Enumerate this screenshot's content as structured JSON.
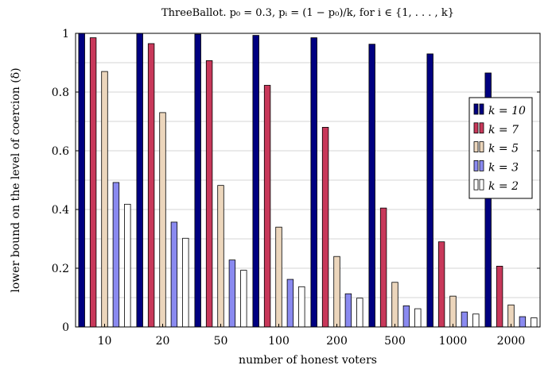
{
  "chart_data": {
    "type": "bar",
    "title": "ThreeBallot. p₀ = 0.3, pᵢ = (1 − p₀)/k, for i ∈ {1, . . . , k}",
    "xlabel": "number of honest voters",
    "ylabel": "lower bound on the level of coercion (δ)",
    "ylim": [
      0,
      1
    ],
    "yticks": [
      "0",
      "0.2",
      "0.4",
      "0.6",
      "0.8",
      "1"
    ],
    "categories": [
      "10",
      "20",
      "50",
      "100",
      "200",
      "500",
      "1000",
      "2000"
    ],
    "grid": true,
    "legend_position": "right",
    "series": [
      {
        "name": "k = 10",
        "color": "#000080",
        "values": [
          1.0,
          1.0,
          0.997,
          0.993,
          0.985,
          0.963,
          0.93,
          0.865
        ]
      },
      {
        "name": "k = 7",
        "color": "#c8385a",
        "values": [
          0.985,
          0.965,
          0.907,
          0.823,
          0.68,
          0.405,
          0.29,
          0.207
        ]
      },
      {
        "name": "k = 5",
        "color": "#ecd6bc",
        "values": [
          0.87,
          0.73,
          0.482,
          0.34,
          0.24,
          0.152,
          0.105,
          0.075
        ]
      },
      {
        "name": "k = 3",
        "color": "#8a8af0",
        "values": [
          0.492,
          0.357,
          0.228,
          0.162,
          0.113,
          0.072,
          0.051,
          0.035
        ]
      },
      {
        "name": "k = 2",
        "color": "#ffffff",
        "values": [
          0.418,
          0.302,
          0.193,
          0.137,
          0.098,
          0.062,
          0.044,
          0.031
        ]
      }
    ]
  }
}
